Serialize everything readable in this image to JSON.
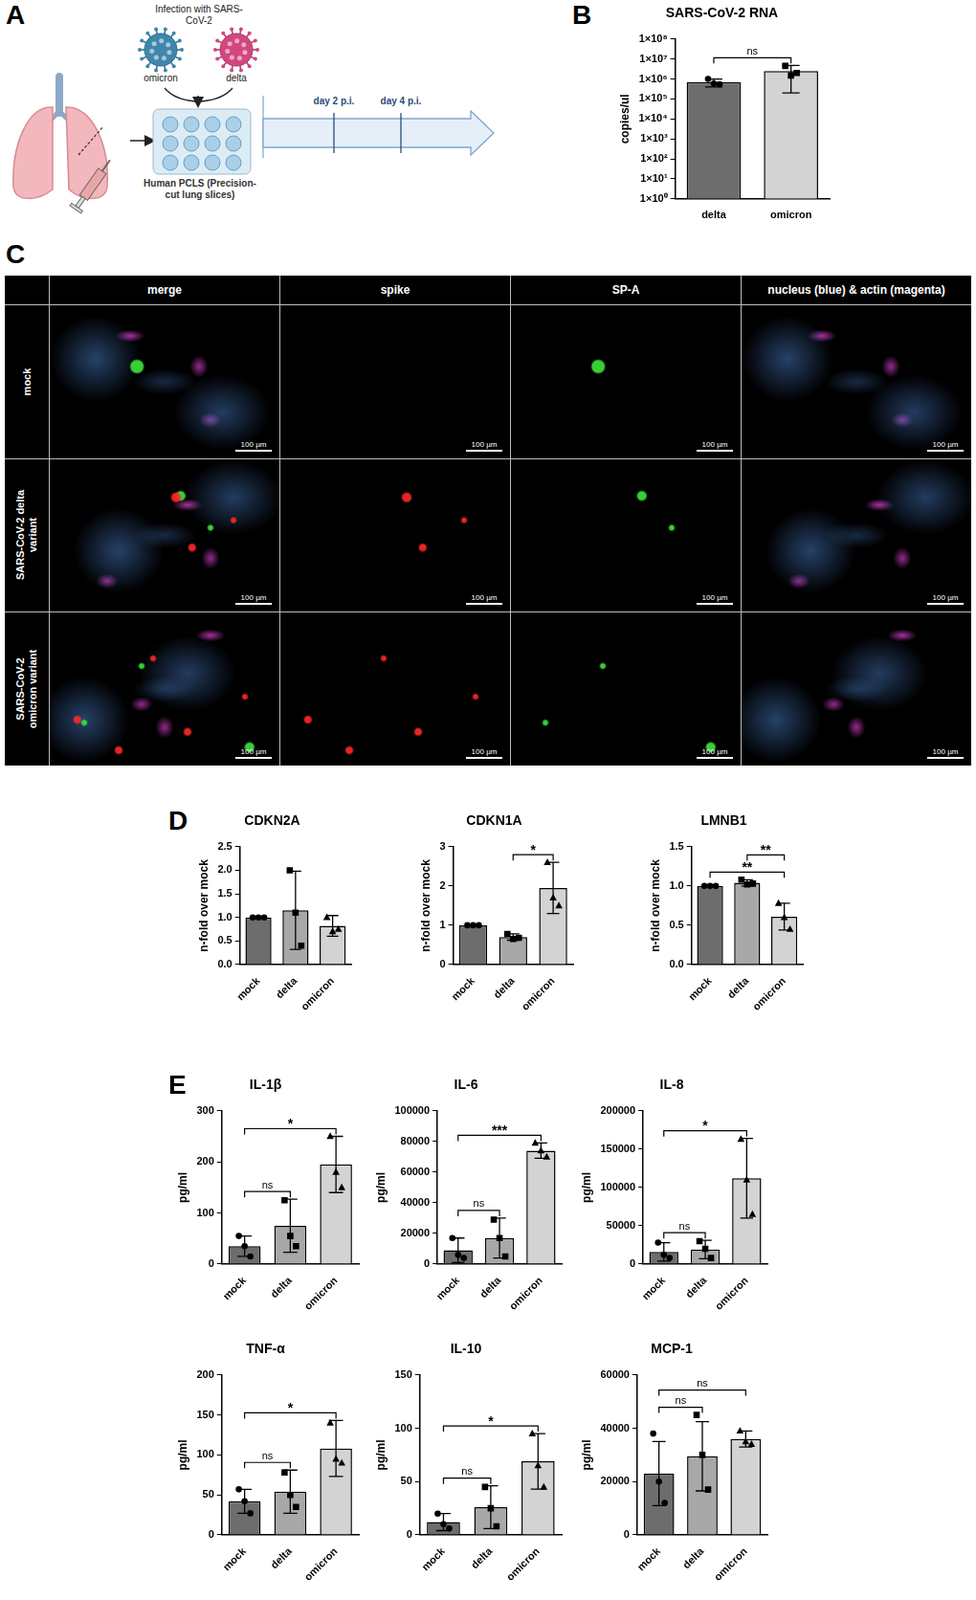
{
  "panels": [
    "A",
    "B",
    "C",
    "D",
    "E"
  ],
  "diagram": {
    "infection_label": "Infection with SARS-CoV-2",
    "virus_labels": [
      "omicron",
      "delta"
    ],
    "plate_label": "Human PCLS (Precision-cut lung slices)",
    "timepoints": [
      "day 2 p.i.",
      "day 4 p.i."
    ]
  },
  "microscopy": {
    "columns": [
      "merge",
      "spike",
      "SP-A",
      "nucleus (blue) & actin (magenta)"
    ],
    "rows": [
      "mock",
      "SARS-CoV-2 delta variant",
      "SARS-CoV-2 omicron variant"
    ],
    "scale_bar": "100 µm"
  },
  "chart_data": [
    {
      "type": "bar",
      "title": "SARS-CoV-2 RNA",
      "y_label": "copies/ul",
      "categories": [
        "delta",
        "omicron"
      ],
      "values": [
        700000,
        2500000
      ],
      "errors": [
        300000,
        2300000
      ],
      "points": [
        [
          1000000,
          600000,
          550000
        ],
        [
          4500000,
          1500000,
          2000000
        ]
      ],
      "colors": [
        "#6d6d6d",
        "#d3d3d3"
      ],
      "log": "y",
      "ylim": [
        1,
        100000000
      ],
      "yticks": [
        {
          "value": 1,
          "label": "1×10⁰"
        },
        {
          "value": 10,
          "label": "1×10¹"
        },
        {
          "value": 100,
          "label": "1×10²"
        },
        {
          "value": 1000,
          "label": "1×10³"
        },
        {
          "value": 10000,
          "label": "1×10⁴"
        },
        {
          "value": 100000,
          "label": "1×10⁵"
        },
        {
          "value": 1000000,
          "label": "1×10⁶"
        },
        {
          "value": 10000000,
          "label": "1×10⁷"
        },
        {
          "value": 100000000,
          "label": "1×10⁸"
        }
      ],
      "grid": false,
      "annotations": [
        {
          "between": [
            "delta",
            "omicron"
          ],
          "text": "ns"
        }
      ]
    },
    {
      "type": "bar",
      "title": "CDKN2A",
      "y_label": "n-fold over mock",
      "categories": [
        "mock",
        "delta",
        "omicron"
      ],
      "values": [
        1.0,
        1.15,
        0.82
      ],
      "errors": [
        0,
        0.83,
        0.22
      ],
      "points": [
        [
          1,
          1,
          1
        ],
        [
          2.0,
          1.1,
          0.4
        ],
        [
          1.0,
          0.7,
          0.75
        ]
      ],
      "colors": [
        "#6d6d6d",
        "#a8a8a8",
        "#d3d3d3"
      ],
      "ylim": [
        0,
        2.5
      ],
      "yticks": [
        {
          "value": 0,
          "label": "0.0"
        },
        {
          "value": 0.5,
          "label": "0.5"
        },
        {
          "value": 1,
          "label": "1.0"
        },
        {
          "value": 1.5,
          "label": "1.5"
        },
        {
          "value": 2,
          "label": "2.0"
        },
        {
          "value": 2.5,
          "label": "2.5"
        }
      ],
      "grid": false,
      "annotations": []
    },
    {
      "type": "bar",
      "title": "CDKN1A",
      "y_label": "n-fold over mock",
      "categories": [
        "mock",
        "delta",
        "omicron"
      ],
      "values": [
        1.0,
        0.7,
        1.95
      ],
      "errors": [
        0,
        0.08,
        0.65
      ],
      "points": [
        [
          1,
          1,
          1
        ],
        [
          0.78,
          0.65,
          0.68
        ],
        [
          2.6,
          1.7,
          1.5
        ]
      ],
      "colors": [
        "#6d6d6d",
        "#a8a8a8",
        "#d3d3d3"
      ],
      "ylim": [
        0,
        3
      ],
      "yticks": [
        0,
        1,
        2,
        3
      ],
      "grid": false,
      "annotations": [
        {
          "between": [
            "delta",
            "omicron"
          ],
          "text": "*"
        }
      ]
    },
    {
      "type": "bar",
      "title": "LMNB1",
      "y_label": "n-fold over mock",
      "categories": [
        "mock",
        "delta",
        "omicron"
      ],
      "values": [
        1.0,
        1.04,
        0.61
      ],
      "errors": [
        0,
        0.04,
        0.17
      ],
      "points": [
        [
          1,
          1,
          1
        ],
        [
          1.08,
          1.02,
          1.03
        ],
        [
          0.78,
          0.6,
          0.45
        ]
      ],
      "colors": [
        "#6d6d6d",
        "#a8a8a8",
        "#d3d3d3"
      ],
      "ylim": [
        0,
        1.5
      ],
      "yticks": [
        {
          "value": 0,
          "label": "0.0"
        },
        {
          "value": 0.5,
          "label": "0.5"
        },
        {
          "value": 1,
          "label": "1.0"
        },
        {
          "value": 1.5,
          "label": "1.5"
        }
      ],
      "grid": false,
      "annotations": [
        {
          "between": [
            "mock",
            "omicron"
          ],
          "text": "**"
        },
        {
          "between": [
            "delta",
            "omicron"
          ],
          "text": "**"
        }
      ]
    },
    {
      "type": "bar",
      "title": "IL-1β",
      "y_label": "pg/ml",
      "categories": [
        "mock",
        "delta",
        "omicron"
      ],
      "values": [
        35,
        75,
        195
      ],
      "errors": [
        20,
        52,
        55
      ],
      "points": [
        [
          55,
          35,
          15
        ],
        [
          125,
          55,
          35
        ],
        [
          250,
          180,
          150
        ]
      ],
      "colors": [
        "#6d6d6d",
        "#a8a8a8",
        "#d3d3d3"
      ],
      "ylim": [
        0,
        300
      ],
      "yticks": [
        0,
        100,
        200,
        300
      ],
      "grid": false,
      "annotations": [
        {
          "between": [
            "mock",
            "delta"
          ],
          "text": "ns"
        },
        {
          "between": [
            "mock",
            "omicron"
          ],
          "text": "*"
        }
      ]
    },
    {
      "type": "bar",
      "title": "IL-6",
      "y_label": "pg/ml",
      "categories": [
        "mock",
        "delta",
        "omicron"
      ],
      "values": [
        9000,
        17000,
        74000
      ],
      "errors": [
        8000,
        13000,
        5000
      ],
      "points": [
        [
          17000,
          6000,
          4000
        ],
        [
          29000,
          17000,
          5000
        ],
        [
          79000,
          74000,
          70000
        ]
      ],
      "colors": [
        "#6d6d6d",
        "#a8a8a8",
        "#d3d3d3"
      ],
      "ylim": [
        0,
        100000
      ],
      "yticks": [
        0,
        20000,
        40000,
        60000,
        80000,
        100000
      ],
      "grid": false,
      "annotations": [
        {
          "between": [
            "mock",
            "delta"
          ],
          "text": "ns"
        },
        {
          "between": [
            "mock",
            "omicron"
          ],
          "text": "***"
        }
      ]
    },
    {
      "type": "bar",
      "title": "IL-8",
      "y_label": "pg/ml",
      "categories": [
        "mock",
        "delta",
        "omicron"
      ],
      "values": [
        16000,
        19000,
        112000
      ],
      "errors": [
        12000,
        12000,
        52000
      ],
      "points": [
        [
          28000,
          12000,
          8000
        ],
        [
          30000,
          20000,
          8000
        ],
        [
          163000,
          110000,
          65000
        ]
      ],
      "colors": [
        "#6d6d6d",
        "#a8a8a8",
        "#d3d3d3"
      ],
      "ylim": [
        0,
        200000
      ],
      "yticks": [
        0,
        50000,
        100000,
        150000,
        200000
      ],
      "grid": false,
      "annotations": [
        {
          "between": [
            "mock",
            "delta"
          ],
          "text": "ns"
        },
        {
          "between": [
            "mock",
            "omicron"
          ],
          "text": "*"
        }
      ]
    },
    {
      "type": "bar",
      "title": "TNF-α",
      "y_label": "pg/ml",
      "categories": [
        "mock",
        "delta",
        "omicron"
      ],
      "values": [
        42,
        54,
        108
      ],
      "errors": [
        15,
        27,
        35
      ],
      "points": [
        [
          57,
          42,
          27
        ],
        [
          78,
          50,
          35
        ],
        [
          140,
          95,
          90
        ]
      ],
      "colors": [
        "#6d6d6d",
        "#a8a8a8",
        "#d3d3d3"
      ],
      "ylim": [
        0,
        200
      ],
      "yticks": [
        0,
        50,
        100,
        150,
        200
      ],
      "grid": false,
      "annotations": [
        {
          "between": [
            "mock",
            "delta"
          ],
          "text": "ns"
        },
        {
          "between": [
            "mock",
            "omicron"
          ],
          "text": "*"
        }
      ]
    },
    {
      "type": "bar",
      "title": "IL-10",
      "y_label": "pg/ml",
      "categories": [
        "mock",
        "delta",
        "omicron"
      ],
      "values": [
        12,
        26,
        69
      ],
      "errors": [
        8,
        20,
        26
      ],
      "points": [
        [
          20,
          10,
          6
        ],
        [
          45,
          25,
          8
        ],
        [
          95,
          65,
          45
        ]
      ],
      "colors": [
        "#6d6d6d",
        "#a8a8a8",
        "#d3d3d3"
      ],
      "ylim": [
        0,
        150
      ],
      "yticks": [
        0,
        50,
        100,
        150
      ],
      "grid": false,
      "annotations": [
        {
          "between": [
            "mock",
            "delta"
          ],
          "text": "ns"
        },
        {
          "between": [
            "mock",
            "omicron"
          ],
          "text": "*"
        }
      ]
    },
    {
      "type": "bar",
      "title": "MCP-1",
      "y_label": "pg/ml",
      "categories": [
        "mock",
        "delta",
        "omicron"
      ],
      "values": [
        23000,
        29500,
        36000
      ],
      "errors": [
        12000,
        13000,
        3000
      ],
      "points": [
        [
          38000,
          20000,
          12000
        ],
        [
          45000,
          30000,
          17000
        ],
        [
          39000,
          35000,
          34000
        ]
      ],
      "colors": [
        "#6d6d6d",
        "#a8a8a8",
        "#d3d3d3"
      ],
      "ylim": [
        0,
        60000
      ],
      "yticks": [
        0,
        20000,
        40000,
        60000
      ],
      "grid": false,
      "annotations": [
        {
          "between": [
            "mock",
            "delta"
          ],
          "text": "ns"
        },
        {
          "between": [
            "mock",
            "omicron"
          ],
          "text": "ns"
        }
      ]
    }
  ]
}
